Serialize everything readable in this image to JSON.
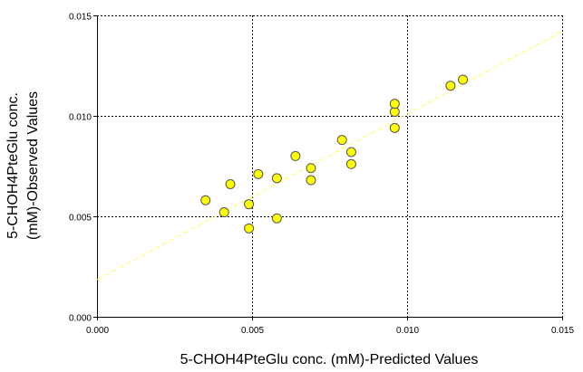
{
  "chart_data": {
    "type": "scatter",
    "xlabel": "5-CHOH4PteGlu conc. (mM)-Predicted Values",
    "ylabel_lines": [
      "5-CHOH4PteGlu conc.",
      "(mM)-Observed Values"
    ],
    "xlim": [
      0,
      0.015
    ],
    "ylim": [
      0,
      0.015
    ],
    "x_ticks": [
      0,
      0.005,
      0.01,
      0.015
    ],
    "x_tick_labels": [
      "0.000",
      "0.005",
      "0.010",
      "0.015"
    ],
    "y_ticks": [
      0,
      0.005,
      0.01,
      0.015
    ],
    "y_tick_labels": [
      "0.000",
      "0.005",
      "0.010",
      "0.015"
    ],
    "grid": true,
    "series": [
      {
        "points": [
          {
            "x": 0.0035,
            "y": 0.0058
          },
          {
            "x": 0.0041,
            "y": 0.0052
          },
          {
            "x": 0.0043,
            "y": 0.0066
          },
          {
            "x": 0.0049,
            "y": 0.0044
          },
          {
            "x": 0.0049,
            "y": 0.0056
          },
          {
            "x": 0.0052,
            "y": 0.0071
          },
          {
            "x": 0.0058,
            "y": 0.0049
          },
          {
            "x": 0.0058,
            "y": 0.0069
          },
          {
            "x": 0.0064,
            "y": 0.008
          },
          {
            "x": 0.0069,
            "y": 0.0068
          },
          {
            "x": 0.0069,
            "y": 0.0074
          },
          {
            "x": 0.0079,
            "y": 0.0088
          },
          {
            "x": 0.0082,
            "y": 0.0076
          },
          {
            "x": 0.0082,
            "y": 0.0082
          },
          {
            "x": 0.0096,
            "y": 0.0094
          },
          {
            "x": 0.0096,
            "y": 0.0102
          },
          {
            "x": 0.0096,
            "y": 0.0106
          },
          {
            "x": 0.0114,
            "y": 0.0115
          },
          {
            "x": 0.0118,
            "y": 0.0118
          }
        ]
      }
    ],
    "fit_line": {
      "x": [
        0,
        0.015
      ],
      "y": [
        0.00185,
        0.0142
      ]
    },
    "colors": {
      "point_fill": "#ffff00",
      "point_stroke": "#555555",
      "fit_line": "#ffff66",
      "grid": "#000000",
      "axis": "#000000"
    }
  }
}
